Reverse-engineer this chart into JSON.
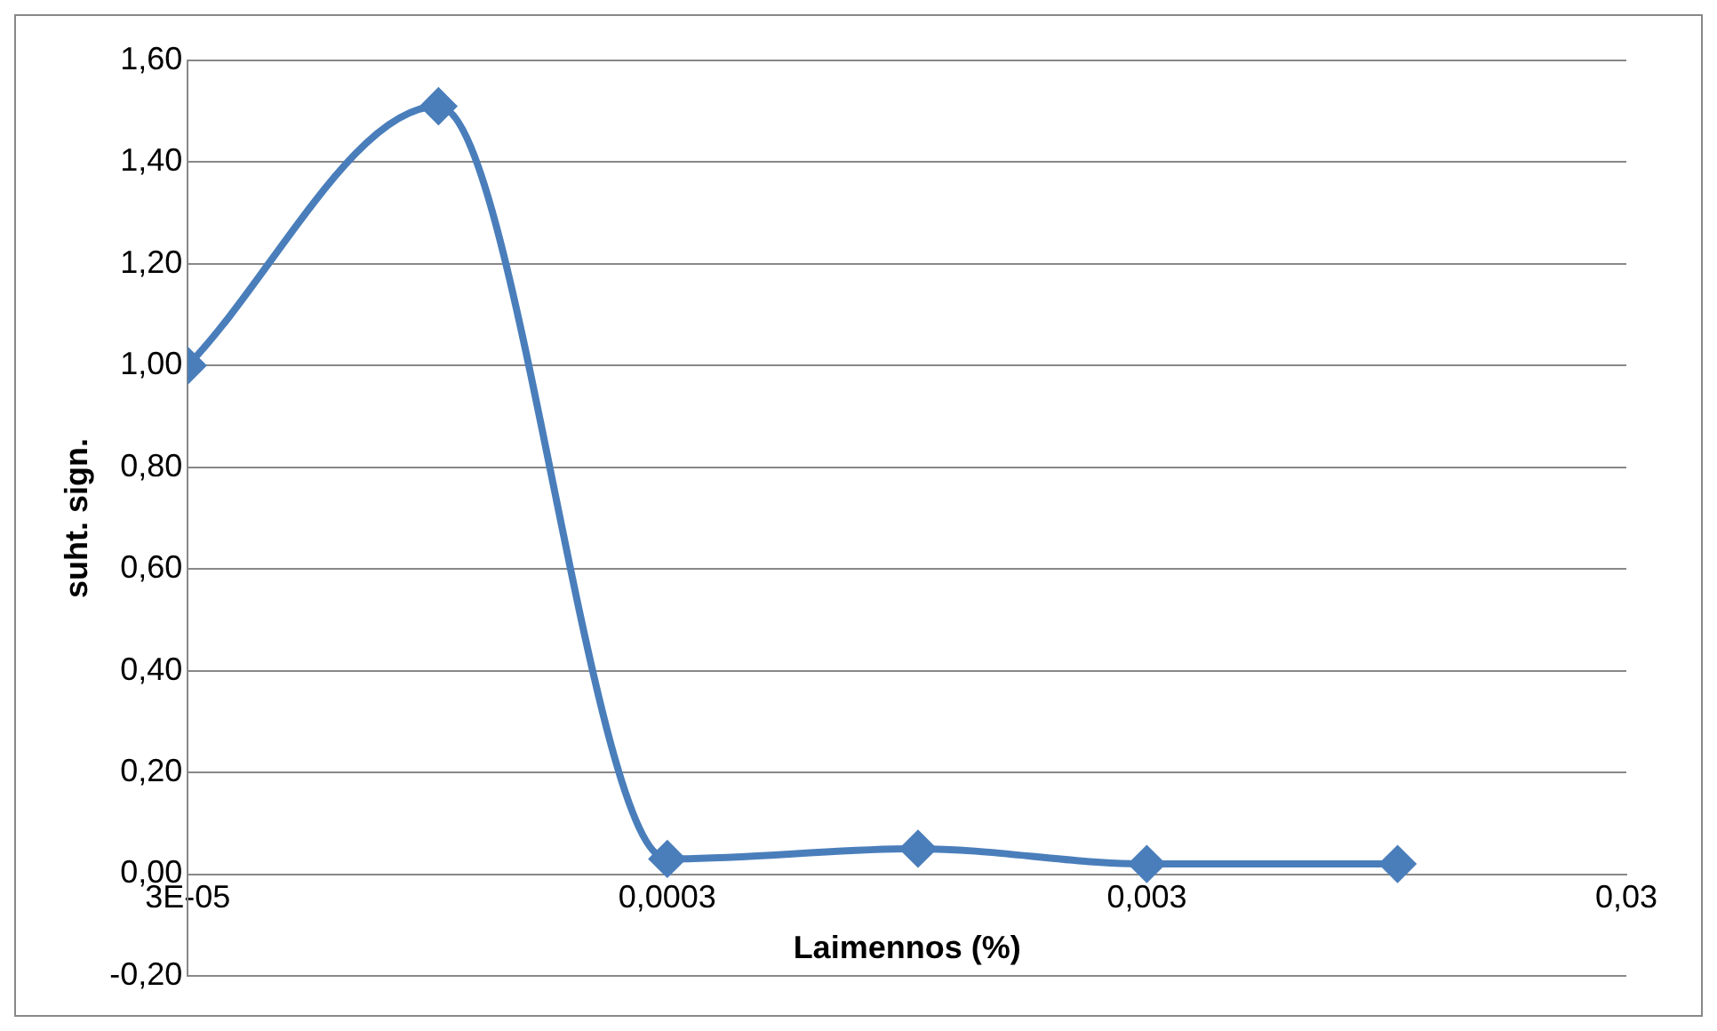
{
  "chart_data": {
    "type": "line",
    "xlabel": "Laimennos (%)",
    "ylabel": "suht. sign.",
    "x": [
      3e-05,
      0.0001,
      0.0003,
      0.001,
      0.003,
      0.01
    ],
    "series": [
      {
        "color": "#4a7ebb",
        "values": [
          1.0,
          1.51,
          0.03,
          0.05,
          0.02,
          0.02
        ]
      }
    ],
    "log": "x",
    "xlim": [
      3e-05,
      0.03
    ],
    "xticks": [
      {
        "value": 3e-05,
        "label": "3E-05"
      },
      {
        "value": 0.0003,
        "label": "0,0003"
      },
      {
        "value": 0.003,
        "label": "0,003"
      },
      {
        "value": 0.03,
        "label": "0,03"
      }
    ],
    "ylim": [
      -0.2,
      1.6
    ],
    "yticks": [
      {
        "value": -0.2,
        "label": "-0,20"
      },
      {
        "value": 0,
        "label": "0,00"
      },
      {
        "value": 0.2,
        "label": "0,20"
      },
      {
        "value": 0.4,
        "label": "0,40"
      },
      {
        "value": 0.6,
        "label": "0,60"
      },
      {
        "value": 0.8,
        "label": "0,80"
      },
      {
        "value": 1.0,
        "label": "1,00"
      },
      {
        "value": 1.2,
        "label": "1,20"
      },
      {
        "value": 1.4,
        "label": "1,40"
      },
      {
        "value": 1.6,
        "label": "1,60"
      }
    ],
    "grid": "y",
    "marker": "diamond",
    "line_style": "solid",
    "legend": false
  }
}
